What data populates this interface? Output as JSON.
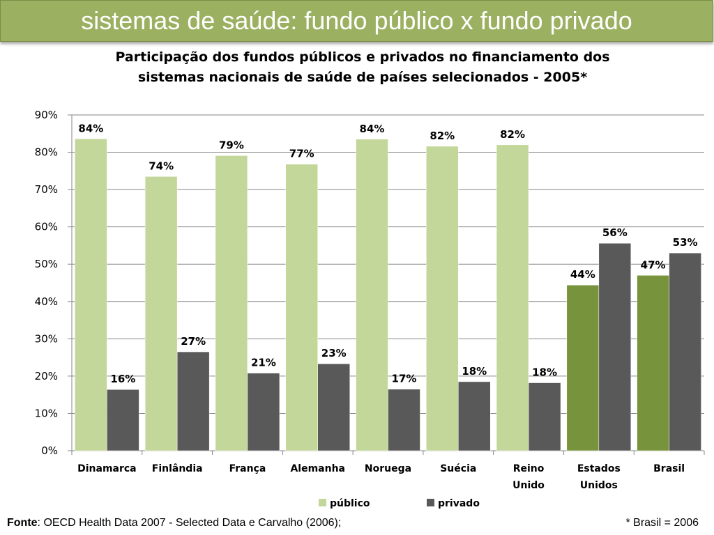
{
  "header": {
    "title": "sistemas de saúde: fundo público x fundo privado"
  },
  "colors": {
    "header_bg": "#9bb060",
    "publico": "#c4d79b",
    "privado": "#595959",
    "publico_highlight": "#77933c"
  },
  "chart_data": {
    "type": "bar",
    "title": "Participação dos fundos públicos e privados no financiamento dos sistemas nacionais de saúde de países selecionados - 2005*",
    "title_lines": [
      "Participação dos fundos públicos e privados no financiamento dos",
      "sistemas nacionais de saúde de países selecionados - 2005*"
    ],
    "categories": [
      "Dinamarca",
      "Finlândia",
      "França",
      "Alemanha",
      "Noruega",
      "Suécia",
      "Reino Unido",
      "Estados Unidos",
      "Brasil"
    ],
    "category_lines": [
      [
        "Dinamarca"
      ],
      [
        "Finlândia"
      ],
      [
        "França"
      ],
      [
        "Alemanha"
      ],
      [
        "Noruega"
      ],
      [
        "Suécia"
      ],
      [
        "Reino",
        "Unido"
      ],
      [
        "Estados",
        "Unidos"
      ],
      [
        "Brasil"
      ]
    ],
    "series": [
      {
        "name": "público",
        "values": [
          83.6,
          73.5,
          79.1,
          76.8,
          83.5,
          81.6,
          82.0,
          44.4,
          47.0
        ],
        "labels": [
          "84%",
          "74%",
          "79%",
          "77%",
          "84%",
          "82%",
          "82%",
          "44%",
          "47%"
        ]
      },
      {
        "name": "privado",
        "values": [
          16.4,
          26.5,
          20.8,
          23.3,
          16.5,
          18.5,
          18.2,
          55.6,
          53.0
        ],
        "labels": [
          "16%",
          "27%",
          "21%",
          "23%",
          "17%",
          "18%",
          "18%",
          "56%",
          "53%"
        ]
      }
    ],
    "highlight_categories": [
      "Estados Unidos",
      "Brasil"
    ],
    "ylim": [
      0,
      90
    ],
    "yticks": [
      "0%",
      "10%",
      "20%",
      "30%",
      "40%",
      "50%",
      "60%",
      "70%",
      "80%",
      "90%"
    ],
    "xlabel": "",
    "ylabel": "",
    "grid": true,
    "legend_position": "bottom"
  },
  "footer": {
    "source_label": "Fonte",
    "source_text": ": OECD Health Data 2007 - Selected Data e Carvalho (2006);",
    "note": "* Brasil = 2006"
  }
}
